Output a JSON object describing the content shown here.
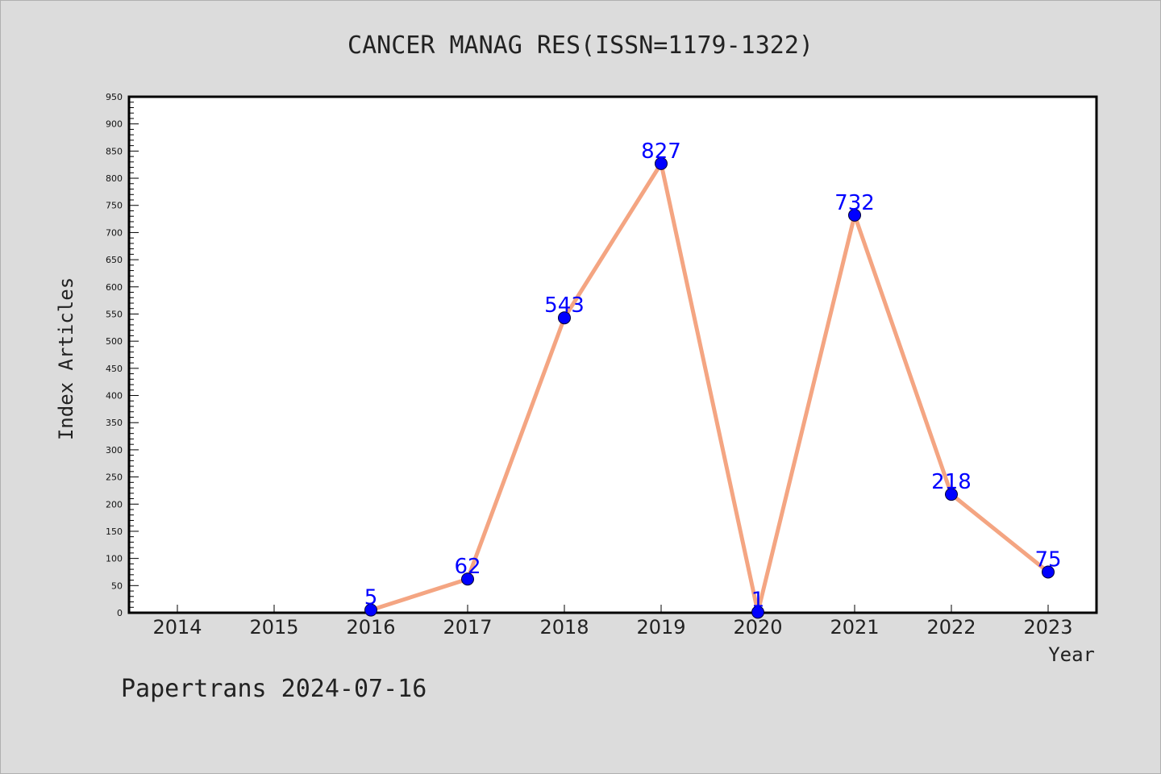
{
  "chart_data": {
    "type": "line",
    "title": "CANCER MANAG RES(ISSN=1179-1322)",
    "xlabel": "Year",
    "ylabel": "Index Articles",
    "categories": [
      "2014",
      "2015",
      "2016",
      "2017",
      "2018",
      "2019",
      "2020",
      "2021",
      "2022",
      "2023"
    ],
    "values": [
      null,
      null,
      5,
      62,
      543,
      827,
      1,
      732,
      218,
      75
    ],
    "value_labels": [
      "",
      "",
      "5",
      "62",
      "543",
      "827",
      "1",
      "732",
      "218",
      "75"
    ],
    "yticks": [
      "0",
      "50",
      "100",
      "150",
      "200",
      "250",
      "300",
      "350",
      "400",
      "450",
      "500",
      "550",
      "600",
      "650",
      "700",
      "750",
      "800",
      "850",
      "900",
      "950"
    ],
    "ylim": [
      0,
      950
    ],
    "grid": false,
    "colors": {
      "line": "#f4a582",
      "marker": "#0000ff",
      "label": "#0000ff",
      "background": "#dcdcdc",
      "plot_background": "#ffffff"
    }
  },
  "footer": "Papertrans 2024-07-16"
}
